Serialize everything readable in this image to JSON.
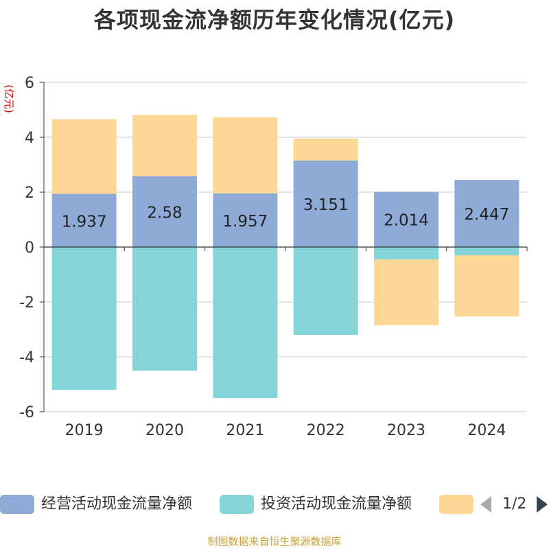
{
  "title": "各项现金流净额历年变化情况(亿元)",
  "source": "制图数据来自恒生聚源数据库",
  "legend": {
    "items": [
      {
        "label": "经营活动现金流量净额",
        "color": "#8eabd8"
      },
      {
        "label": "投资活动现金流量净额",
        "color": "#85d4d8"
      },
      {
        "label": "",
        "color": "#fdd795"
      }
    ],
    "page": "1/2"
  },
  "chart_data": {
    "type": "bar",
    "stacked": true,
    "title": "各项现金流净额历年变化情况(亿元)",
    "ylabel": "(亿元)",
    "ylim": [
      -6,
      6
    ],
    "yticks": [
      -6,
      -4,
      -2,
      0,
      2,
      4,
      6
    ],
    "categories": [
      "2019",
      "2020",
      "2021",
      "2022",
      "2023",
      "2024"
    ],
    "series": [
      {
        "name": "经营活动现金流量净额",
        "color": "#8eabd8",
        "values": [
          1.937,
          2.58,
          1.957,
          3.151,
          2.014,
          2.447
        ],
        "labels": [
          "1.937",
          "2.58",
          "1.957",
          "3.151",
          "2.014",
          "2.447"
        ]
      },
      {
        "name": "投资活动现金流量净额",
        "color": "#85d4d8",
        "values": [
          -5.2,
          -4.5,
          -5.5,
          -3.2,
          -0.45,
          -0.3
        ]
      },
      {
        "name": "",
        "color": "#fdd795",
        "values": [
          2.72,
          2.23,
          2.77,
          0.8,
          -2.4,
          -2.23
        ]
      }
    ]
  }
}
